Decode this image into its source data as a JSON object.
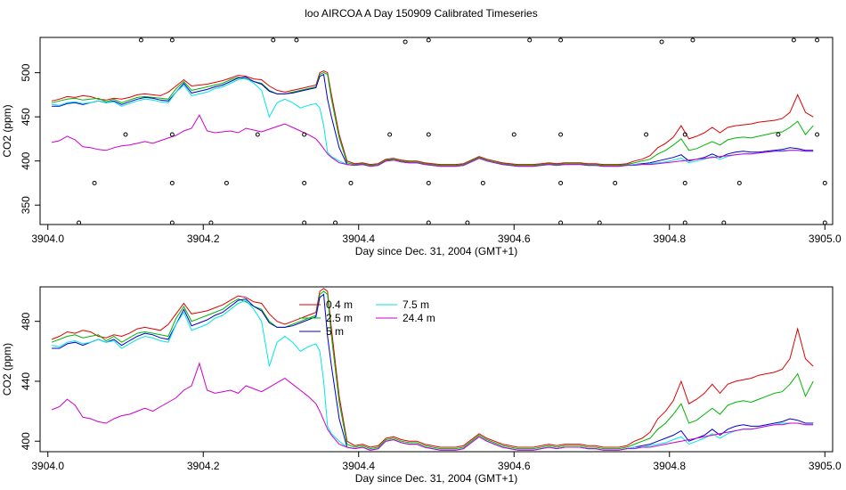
{
  "title": "loo AIRCOA A  Day 150909  Calibrated Timeseries",
  "colors": {
    "red": "#dd0000",
    "green": "#00b400",
    "blue": "#0000cc",
    "cyan": "#00e5e5",
    "magenta": "#cc00cc"
  },
  "chart_data": [
    {
      "type": "line",
      "xlabel": "Day since Dec. 31, 2004 (GMT+1)",
      "ylabel": "CO2 (ppm)",
      "xlim": [
        3903.99,
        3905.01
      ],
      "ylim": [
        328,
        540
      ],
      "xticks": [
        3904.0,
        3904.2,
        3904.4,
        3904.6,
        3904.8,
        3905.0
      ],
      "xtick_labels": [
        "3904.0",
        "3904.2",
        "3904.4",
        "3904.6",
        "3904.8",
        "3905.0"
      ],
      "yticks": [
        350,
        400,
        450,
        500
      ],
      "ytick_labels": [
        "350",
        "400",
        "450",
        "500"
      ],
      "grid": false,
      "x": [
        3904.005,
        3904.015,
        3904.025,
        3904.035,
        3904.045,
        3904.055,
        3904.065,
        3904.075,
        3904.085,
        3904.095,
        3904.105,
        3904.115,
        3904.125,
        3904.135,
        3904.145,
        3904.155,
        3904.165,
        3904.175,
        3904.185,
        3904.195,
        3904.205,
        3904.215,
        3904.225,
        3904.235,
        3904.245,
        3904.255,
        3904.265,
        3904.275,
        3904.285,
        3904.295,
        3904.305,
        3904.315,
        3904.325,
        3904.335,
        3904.345,
        3904.35,
        3904.355,
        3904.36,
        3904.365,
        3904.375,
        3904.385,
        3904.395,
        3904.405,
        3904.415,
        3904.425,
        3904.435,
        3904.445,
        3904.455,
        3904.465,
        3904.475,
        3904.485,
        3904.495,
        3904.505,
        3904.515,
        3904.525,
        3904.535,
        3904.545,
        3904.555,
        3904.565,
        3904.575,
        3904.585,
        3904.595,
        3904.605,
        3904.615,
        3904.625,
        3904.635,
        3904.645,
        3904.655,
        3904.665,
        3904.675,
        3904.685,
        3904.695,
        3904.705,
        3904.715,
        3904.725,
        3904.735,
        3904.745,
        3904.755,
        3904.765,
        3904.775,
        3904.785,
        3904.795,
        3904.805,
        3904.815,
        3904.825,
        3904.835,
        3904.845,
        3904.855,
        3904.865,
        3904.875,
        3904.885,
        3904.895,
        3904.905,
        3904.915,
        3904.925,
        3904.935,
        3904.945,
        3904.955,
        3904.965,
        3904.975,
        3904.985
      ],
      "series": [
        {
          "color": "red",
          "values": [
            468,
            470,
            473,
            472,
            474,
            473,
            470,
            469,
            471,
            470,
            472,
            475,
            476,
            475,
            474,
            478,
            485,
            492,
            485,
            486,
            487,
            489,
            491,
            494,
            497,
            496,
            493,
            492,
            485,
            480,
            478,
            480,
            482,
            484,
            486,
            500,
            502,
            500,
            475,
            430,
            400,
            397,
            398,
            396,
            397,
            402,
            403,
            401,
            400,
            400,
            398,
            397,
            396,
            396,
            396,
            397,
            401,
            405,
            402,
            400,
            398,
            397,
            396,
            396,
            396,
            397,
            398,
            397,
            398,
            398,
            398,
            397,
            397,
            396,
            396,
            396,
            397,
            400,
            402,
            406,
            415,
            420,
            427,
            440,
            425,
            428,
            432,
            438,
            432,
            438,
            440,
            441,
            442,
            444,
            445,
            446,
            448,
            455,
            475,
            455,
            450
          ]
        },
        {
          "color": "green",
          "values": [
            466,
            468,
            470,
            471,
            469,
            470,
            471,
            467,
            470,
            466,
            469,
            472,
            473,
            472,
            471,
            470,
            482,
            490,
            480,
            482,
            484,
            486,
            488,
            492,
            495,
            493,
            490,
            488,
            480,
            476,
            476,
            478,
            480,
            482,
            484,
            498,
            500,
            498,
            470,
            426,
            398,
            396,
            397,
            395,
            396,
            401,
            402,
            400,
            399,
            399,
            397,
            396,
            395,
            395,
            395,
            396,
            400,
            404,
            401,
            399,
            397,
            396,
            395,
            395,
            395,
            396,
            397,
            396,
            397,
            397,
            397,
            396,
            396,
            395,
            395,
            395,
            396,
            398,
            400,
            402,
            408,
            412,
            418,
            425,
            412,
            414,
            418,
            422,
            418,
            424,
            426,
            427,
            426,
            428,
            430,
            432,
            433,
            438,
            445,
            430,
            440
          ]
        },
        {
          "color": "blue",
          "values": [
            462,
            462,
            465,
            466,
            464,
            466,
            468,
            466,
            468,
            464,
            467,
            470,
            472,
            471,
            469,
            468,
            478,
            488,
            477,
            479,
            481,
            484,
            486,
            490,
            494,
            495,
            490,
            487,
            479,
            476,
            476,
            477,
            479,
            481,
            483,
            496,
            498,
            470,
            450,
            415,
            396,
            395,
            396,
            394,
            395,
            400,
            401,
            399,
            398,
            398,
            396,
            395,
            394,
            394,
            394,
            395,
            399,
            403,
            400,
            398,
            396,
            395,
            394,
            394,
            394,
            395,
            396,
            395,
            396,
            396,
            396,
            395,
            395,
            394,
            394,
            394,
            395,
            396,
            397,
            398,
            400,
            402,
            404,
            407,
            400,
            402,
            404,
            408,
            404,
            408,
            410,
            411,
            410,
            410,
            411,
            412,
            413,
            415,
            414,
            412,
            412
          ]
        },
        {
          "color": "cyan",
          "values": [
            464,
            463,
            466,
            467,
            465,
            466,
            468,
            466,
            467,
            462,
            465,
            468,
            470,
            469,
            467,
            466,
            478,
            486,
            474,
            476,
            478,
            482,
            484,
            488,
            492,
            494,
            488,
            480,
            450,
            466,
            470,
            466,
            460,
            463,
            465,
            460,
            440,
            410,
            405,
            400,
            396,
            395,
            396,
            394,
            395,
            400,
            401,
            399,
            398,
            398,
            396,
            395,
            394,
            394,
            394,
            395,
            399,
            403,
            400,
            398,
            396,
            395,
            394,
            394,
            394,
            395,
            396,
            395,
            396,
            396,
            396,
            395,
            395,
            394,
            394,
            394,
            395,
            396,
            396,
            397,
            398,
            399,
            401,
            403,
            398,
            400,
            402,
            405,
            402,
            405,
            407,
            408,
            408,
            409,
            410,
            411,
            412,
            412,
            412,
            411,
            411
          ]
        },
        {
          "color": "magenta",
          "values": [
            421,
            423,
            428,
            424,
            416,
            415,
            413,
            412,
            415,
            417,
            418,
            420,
            422,
            420,
            423,
            426,
            429,
            434,
            437,
            452,
            434,
            432,
            433,
            434,
            432,
            437,
            435,
            433,
            436,
            439,
            442,
            438,
            434,
            430,
            425,
            420,
            414,
            408,
            404,
            398,
            396,
            395,
            396,
            394,
            395,
            400,
            401,
            399,
            398,
            398,
            396,
            395,
            394,
            394,
            394,
            395,
            399,
            403,
            400,
            398,
            396,
            395,
            394,
            394,
            394,
            395,
            396,
            395,
            396,
            396,
            396,
            395,
            395,
            394,
            394,
            394,
            395,
            395,
            396,
            396,
            397,
            398,
            399,
            400,
            401,
            402,
            403,
            404,
            405,
            406,
            407,
            408,
            408,
            409,
            410,
            411,
            411,
            412,
            412,
            411,
            411
          ]
        }
      ],
      "markers": {
        "x": [
          3904.04,
          3904.06,
          3904.12,
          3904.16,
          3904.16,
          3904.16,
          3904.16,
          3904.1,
          3904.21,
          3904.23,
          3904.27,
          3904.29,
          3904.32,
          3904.33,
          3904.33,
          3904.33,
          3904.37,
          3904.39,
          3904.44,
          3904.46,
          3904.49,
          3904.49,
          3904.49,
          3904.49,
          3904.54,
          3904.56,
          3904.6,
          3904.62,
          3904.66,
          3904.66,
          3904.66,
          3904.66,
          3904.71,
          3904.73,
          3904.77,
          3904.79,
          3904.82,
          3904.82,
          3904.82,
          3904.87,
          3904.89,
          3904.94,
          3904.96,
          3904.99,
          3904.99,
          3905.0,
          3905.0,
          3904.83
        ],
        "y": [
          330,
          375,
          537,
          330,
          375,
          430,
          537,
          430,
          330,
          375,
          430,
          537,
          537,
          430,
          375,
          330,
          330,
          375,
          430,
          535,
          330,
          375,
          430,
          537,
          330,
          375,
          430,
          537,
          330,
          375,
          430,
          537,
          330,
          375,
          430,
          535,
          330,
          375,
          430,
          330,
          375,
          430,
          537,
          537,
          430,
          375,
          330,
          537
        ]
      }
    },
    {
      "type": "line",
      "xlabel": "Day since Dec. 31, 2004 (GMT+1)",
      "ylabel": "CO2 (ppm)",
      "xlim": [
        3903.99,
        3905.01
      ],
      "ylim": [
        393,
        503
      ],
      "xticks": [
        3904.0,
        3904.2,
        3904.4,
        3904.6,
        3904.8,
        3905.0
      ],
      "xtick_labels": [
        "3904.0",
        "3904.2",
        "3904.4",
        "3904.6",
        "3904.8",
        "3905.0"
      ],
      "yticks": [
        400,
        440,
        480
      ],
      "ytick_labels": [
        "400",
        "440",
        "480"
      ],
      "grid": false,
      "legend": {
        "placement": "top-center",
        "entries": [
          {
            "name": "0.4 m",
            "color": "red"
          },
          {
            "name": "2.5 m",
            "color": "green"
          },
          {
            "name": "5 m",
            "color": "blue"
          },
          {
            "name": "7.5 m",
            "color": "cyan"
          },
          {
            "name": "24.4 m",
            "color": "magenta"
          }
        ]
      },
      "x_from_panel": 0
    }
  ]
}
